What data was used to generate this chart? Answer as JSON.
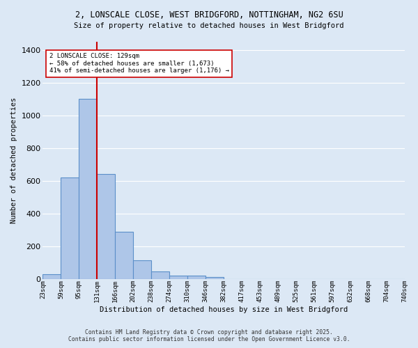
{
  "title_line1": "2, LONSCALE CLOSE, WEST BRIDGFORD, NOTTINGHAM, NG2 6SU",
  "title_line2": "Size of property relative to detached houses in West Bridgford",
  "xlabel": "Distribution of detached houses by size in West Bridgford",
  "ylabel": "Number of detached properties",
  "bar_values": [
    30,
    620,
    1100,
    640,
    290,
    115,
    48,
    20,
    20,
    12,
    0,
    0,
    0,
    0,
    0,
    0,
    0,
    0,
    0,
    0
  ],
  "bin_labels": [
    "23sqm",
    "59sqm",
    "95sqm",
    "131sqm",
    "166sqm",
    "202sqm",
    "238sqm",
    "274sqm",
    "310sqm",
    "346sqm",
    "382sqm",
    "417sqm",
    "453sqm",
    "489sqm",
    "525sqm",
    "561sqm",
    "597sqm",
    "632sqm",
    "668sqm",
    "704sqm",
    "740sqm"
  ],
  "bar_color": "#aec6e8",
  "bar_edge_color": "#5b8fc9",
  "bar_edge_width": 0.8,
  "vline_x": 3,
  "vline_color": "#cc0000",
  "vline_linewidth": 1.5,
  "ylim": [
    0,
    1450
  ],
  "yticks": [
    0,
    200,
    400,
    600,
    800,
    1000,
    1200,
    1400
  ],
  "annotation_text": "2 LONSCALE CLOSE: 129sqm\n← 58% of detached houses are smaller (1,673)\n41% of semi-detached houses are larger (1,176) →",
  "annotation_box_color": "#ffffff",
  "annotation_box_edge": "#cc0000",
  "bg_color": "#dce8f5",
  "grid_color": "#ffffff",
  "footer_line1": "Contains HM Land Registry data © Crown copyright and database right 2025.",
  "footer_line2": "Contains public sector information licensed under the Open Government Licence v3.0."
}
